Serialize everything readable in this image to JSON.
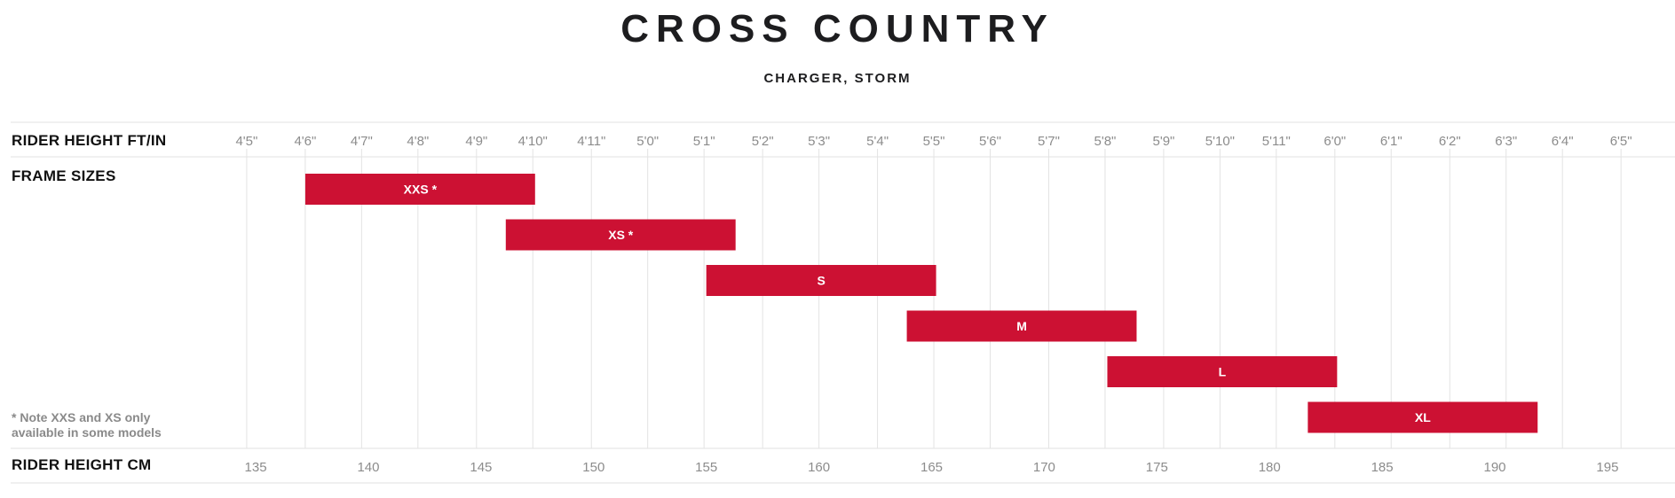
{
  "title": "CROSS COUNTRY",
  "subtitle": "CHARGER, STORM",
  "labels": {
    "ft_row": "RIDER HEIGHT FT/IN",
    "frame_row": "FRAME SIZES",
    "cm_row": "RIDER HEIGHT CM"
  },
  "note": "* Note XXS and XS only available in some models",
  "colors": {
    "bar": "#cc1133",
    "grid": "#e3e3e3",
    "tick_text": "#8c8c8c"
  },
  "chart_data": {
    "type": "bar",
    "orientation": "horizontal-range",
    "x_unit": "cm",
    "xlim": [
      133.5,
      196.5
    ],
    "grid": true,
    "ft_ticks": [
      {
        "label": "4'5\"",
        "cm": 134.6
      },
      {
        "label": "4'6\"",
        "cm": 137.2
      },
      {
        "label": "4'7\"",
        "cm": 139.7
      },
      {
        "label": "4'8\"",
        "cm": 142.2
      },
      {
        "label": "4'9\"",
        "cm": 144.8
      },
      {
        "label": "4'10\"",
        "cm": 147.3
      },
      {
        "label": "4'11\"",
        "cm": 149.9
      },
      {
        "label": "5'0\"",
        "cm": 152.4
      },
      {
        "label": "5'1\"",
        "cm": 154.9
      },
      {
        "label": "5'2\"",
        "cm": 157.5
      },
      {
        "label": "5'3\"",
        "cm": 160.0
      },
      {
        "label": "5'4\"",
        "cm": 162.6
      },
      {
        "label": "5'5\"",
        "cm": 165.1
      },
      {
        "label": "5'6\"",
        "cm": 167.6
      },
      {
        "label": "5'7\"",
        "cm": 170.2
      },
      {
        "label": "5'8\"",
        "cm": 172.7
      },
      {
        "label": "5'9\"",
        "cm": 175.3
      },
      {
        "label": "5'10\"",
        "cm": 177.8
      },
      {
        "label": "5'11\"",
        "cm": 180.3
      },
      {
        "label": "6'0\"",
        "cm": 182.9
      },
      {
        "label": "6'1\"",
        "cm": 185.4
      },
      {
        "label": "6'2\"",
        "cm": 188.0
      },
      {
        "label": "6'3\"",
        "cm": 190.5
      },
      {
        "label": "6'4\"",
        "cm": 193.0
      },
      {
        "label": "6'5\"",
        "cm": 195.6
      }
    ],
    "cm_ticks": [
      "135",
      "140",
      "145",
      "150",
      "155",
      "160",
      "165",
      "170",
      "175",
      "180",
      "185",
      "190",
      "195"
    ],
    "series": [
      {
        "name": "XXS *",
        "start_cm": 137.2,
        "end_cm": 147.4
      },
      {
        "name": "XS *",
        "start_cm": 146.1,
        "end_cm": 156.3
      },
      {
        "name": "S",
        "start_cm": 155.0,
        "end_cm": 165.2
      },
      {
        "name": "M",
        "start_cm": 163.9,
        "end_cm": 174.1
      },
      {
        "name": "L",
        "start_cm": 172.8,
        "end_cm": 183.0
      },
      {
        "name": "XL",
        "start_cm": 181.7,
        "end_cm": 191.9
      }
    ]
  }
}
